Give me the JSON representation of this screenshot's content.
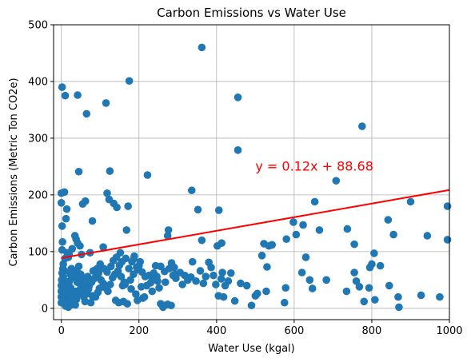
{
  "chart_data": {
    "type": "scatter",
    "title": "Carbon Emissions vs Water Use",
    "xlabel": "Water Use (kgal)",
    "ylabel": "Carbon Emissions (Metric Ton CO2e)",
    "xlim": [
      -20,
      1000
    ],
    "ylim": [
      -20,
      500
    ],
    "xticks": [
      0,
      200,
      400,
      600,
      800,
      1000
    ],
    "yticks": [
      0,
      100,
      200,
      300,
      400,
      500
    ],
    "grid": true,
    "marker_color": "#1f77b4",
    "regression": {
      "slope": 0.12,
      "intercept": 88.68,
      "x_range": [
        0,
        1000
      ],
      "color": "#ff0000",
      "equation_label": "y = 0.12x + 88.68",
      "label_anchor": [
        500,
        250
      ]
    },
    "points": [
      [
        2,
        390
      ],
      [
        10,
        375
      ],
      [
        42,
        376
      ],
      [
        115,
        362
      ],
      [
        65,
        343
      ],
      [
        175,
        401
      ],
      [
        362,
        460
      ],
      [
        455,
        372
      ],
      [
        455,
        279
      ],
      [
        775,
        321
      ],
      [
        125,
        242
      ],
      [
        45,
        241
      ],
      [
        222,
        235
      ],
      [
        0,
        203
      ],
      [
        8,
        205
      ],
      [
        62,
        189
      ],
      [
        55,
        184
      ],
      [
        0,
        186
      ],
      [
        118,
        203
      ],
      [
        135,
        185
      ],
      [
        143,
        178
      ],
      [
        123,
        192
      ],
      [
        172,
        180
      ],
      [
        2,
        145
      ],
      [
        3,
        117
      ],
      [
        12,
        158
      ],
      [
        14,
        175
      ],
      [
        80,
        154
      ],
      [
        168,
        138
      ],
      [
        2,
        103
      ],
      [
        35,
        128
      ],
      [
        38,
        122
      ],
      [
        42,
        115
      ],
      [
        15,
        98
      ],
      [
        28,
        105
      ],
      [
        48,
        110
      ],
      [
        52,
        95
      ],
      [
        74,
        98
      ],
      [
        108,
        108
      ],
      [
        152,
        98
      ],
      [
        336,
        208
      ],
      [
        352,
        174
      ],
      [
        406,
        173
      ],
      [
        517,
        93
      ],
      [
        522,
        114
      ],
      [
        535,
        110
      ],
      [
        543,
        112
      ],
      [
        653,
        188
      ],
      [
        708,
        225
      ],
      [
        755,
        113
      ],
      [
        900,
        188
      ],
      [
        995,
        180
      ],
      [
        842,
        156
      ],
      [
        856,
        130
      ],
      [
        943,
        128
      ],
      [
        995,
        121
      ],
      [
        598,
        152
      ],
      [
        605,
        130
      ],
      [
        623,
        147
      ],
      [
        665,
        138
      ],
      [
        737,
        140
      ],
      [
        580,
        122
      ],
      [
        402,
        110
      ],
      [
        413,
        115
      ],
      [
        362,
        120
      ],
      [
        276,
        138
      ],
      [
        274,
        128
      ],
      [
        380,
        81
      ],
      [
        326,
        50
      ],
      [
        256,
        74
      ],
      [
        243,
        75
      ],
      [
        266,
        65
      ],
      [
        291,
        72
      ],
      [
        295,
        53
      ],
      [
        288,
        58
      ],
      [
        306,
        63
      ],
      [
        338,
        82
      ],
      [
        334,
        55
      ],
      [
        347,
        48
      ],
      [
        412,
        52
      ],
      [
        430,
        48
      ],
      [
        437,
        62
      ],
      [
        415,
        63
      ],
      [
        398,
        42
      ],
      [
        422,
        40
      ],
      [
        405,
        22
      ],
      [
        418,
        20
      ],
      [
        447,
        13
      ],
      [
        462,
        44
      ],
      [
        478,
        40
      ],
      [
        500,
        22
      ],
      [
        505,
        26
      ],
      [
        528,
        30
      ],
      [
        530,
        73
      ],
      [
        578,
        36
      ],
      [
        620,
        63
      ],
      [
        630,
        90
      ],
      [
        640,
        50
      ],
      [
        647,
        35
      ],
      [
        683,
        50
      ],
      [
        735,
        30
      ],
      [
        755,
        63
      ],
      [
        760,
        48
      ],
      [
        768,
        38
      ],
      [
        780,
        12
      ],
      [
        793,
        36
      ],
      [
        800,
        78
      ],
      [
        808,
        15
      ],
      [
        822,
        75
      ],
      [
        845,
        40
      ],
      [
        868,
        20
      ],
      [
        870,
        2
      ],
      [
        927,
        23
      ],
      [
        975,
        20
      ],
      [
        795,
        72
      ],
      [
        806,
        97
      ],
      [
        575,
        10
      ],
      [
        490,
        5
      ],
      [
        265,
        5
      ],
      [
        256,
        8
      ],
      [
        274,
        7
      ],
      [
        283,
        5
      ],
      [
        262,
        2
      ],
      [
        160,
        12
      ],
      [
        170,
        8
      ],
      [
        148,
        10
      ],
      [
        140,
        14
      ],
      [
        196,
        14
      ],
      [
        210,
        18
      ],
      [
        220,
        40
      ],
      [
        230,
        45
      ],
      [
        200,
        75
      ],
      [
        203,
        82
      ],
      [
        187,
        88
      ],
      [
        174,
        70
      ],
      [
        178,
        50
      ],
      [
        164,
        42
      ],
      [
        192,
        25
      ],
      [
        158,
        40
      ],
      [
        113,
        40
      ],
      [
        98,
        35
      ],
      [
        94,
        28
      ],
      [
        88,
        20
      ],
      [
        80,
        22
      ],
      [
        76,
        10
      ],
      [
        70,
        34
      ],
      [
        63,
        38
      ],
      [
        56,
        44
      ],
      [
        50,
        60
      ],
      [
        44,
        52
      ],
      [
        41,
        46
      ],
      [
        37,
        30
      ],
      [
        34,
        22
      ],
      [
        31,
        18
      ],
      [
        28,
        12
      ],
      [
        25,
        8
      ],
      [
        22,
        5
      ],
      [
        18,
        2
      ],
      [
        15,
        14
      ],
      [
        12,
        24
      ],
      [
        9,
        32
      ],
      [
        6,
        38
      ],
      [
        3,
        46
      ],
      [
        1,
        50
      ],
      [
        2,
        62
      ],
      [
        4,
        70
      ],
      [
        5,
        78
      ],
      [
        7,
        15
      ],
      [
        9,
        8
      ],
      [
        11,
        4
      ],
      [
        14,
        28
      ],
      [
        16,
        35
      ],
      [
        19,
        42
      ],
      [
        21,
        48
      ],
      [
        24,
        36
      ],
      [
        27,
        26
      ],
      [
        30,
        20
      ],
      [
        33,
        14
      ],
      [
        36,
        6
      ],
      [
        39,
        16
      ],
      [
        43,
        24
      ],
      [
        47,
        32
      ],
      [
        51,
        38
      ],
      [
        54,
        28
      ],
      [
        58,
        20
      ],
      [
        61,
        12
      ],
      [
        66,
        26
      ],
      [
        72,
        40
      ],
      [
        78,
        46
      ],
      [
        84,
        52
      ],
      [
        90,
        58
      ],
      [
        96,
        62
      ],
      [
        102,
        50
      ],
      [
        108,
        44
      ],
      [
        114,
        36
      ],
      [
        120,
        30
      ],
      [
        126,
        42
      ],
      [
        132,
        54
      ],
      [
        138,
        60
      ],
      [
        146,
        66
      ],
      [
        154,
        56
      ],
      [
        162,
        46
      ],
      [
        180,
        34
      ],
      [
        186,
        60
      ],
      [
        206,
        38
      ],
      [
        214,
        20
      ],
      [
        234,
        30
      ],
      [
        226,
        58
      ],
      [
        238,
        62
      ],
      [
        248,
        48
      ],
      [
        252,
        36
      ],
      [
        268,
        46
      ],
      [
        278,
        70
      ],
      [
        284,
        80
      ],
      [
        292,
        60
      ],
      [
        312,
        42
      ],
      [
        318,
        58
      ],
      [
        358,
        66
      ],
      [
        366,
        44
      ],
      [
        372,
        56
      ],
      [
        386,
        72
      ],
      [
        392,
        58
      ],
      [
        0,
        30
      ],
      [
        0,
        20
      ],
      [
        0,
        10
      ],
      [
        0,
        40
      ],
      [
        3,
        25
      ],
      [
        5,
        55
      ],
      [
        8,
        66
      ],
      [
        10,
        88
      ],
      [
        18,
        90
      ],
      [
        20,
        95
      ],
      [
        23,
        60
      ],
      [
        26,
        70
      ],
      [
        32,
        55
      ],
      [
        40,
        65
      ],
      [
        45,
        74
      ],
      [
        60,
        50
      ],
      [
        68,
        56
      ],
      [
        82,
        66
      ],
      [
        92,
        70
      ],
      [
        100,
        78
      ],
      [
        110,
        70
      ],
      [
        118,
        64
      ],
      [
        128,
        74
      ],
      [
        134,
        84
      ],
      [
        142,
        90
      ],
      [
        150,
        76
      ],
      [
        156,
        82
      ],
      [
        166,
        88
      ],
      [
        182,
        82
      ],
      [
        188,
        92
      ],
      [
        194,
        72
      ],
      [
        198,
        68
      ],
      [
        208,
        64
      ],
      [
        216,
        56
      ],
      [
        236,
        52
      ],
      [
        246,
        56
      ]
    ]
  }
}
